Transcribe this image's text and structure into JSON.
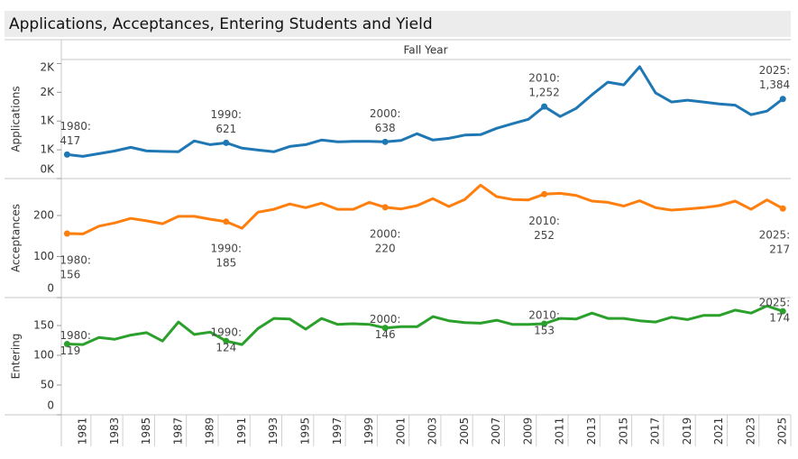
{
  "title": "Applications, Acceptances, Entering Students and Yield",
  "chart_data": [
    {
      "type": "line",
      "xlabel": "Fall Year",
      "ylabel": "Applications",
      "x": [
        1980,
        1981,
        1982,
        1983,
        1984,
        1985,
        1986,
        1987,
        1988,
        1989,
        1990,
        1991,
        1992,
        1993,
        1994,
        1995,
        1996,
        1997,
        1998,
        1999,
        2000,
        2001,
        2002,
        2003,
        2004,
        2005,
        2006,
        2007,
        2008,
        2009,
        2010,
        2011,
        2012,
        2013,
        2014,
        2015,
        2016,
        2017,
        2018,
        2019,
        2020,
        2021,
        2022,
        2023,
        2024,
        2025
      ],
      "xlim": [
        1980,
        2025
      ],
      "series": [
        {
          "name": "Applications",
          "color": "#1f77b4",
          "values": [
            417,
            385,
            433,
            480,
            543,
            480,
            472,
            465,
            654,
            590,
            621,
            528,
            496,
            465,
            559,
            590,
            670,
            638,
            646,
            646,
            638,
            661,
            780,
            669,
            700,
            756,
            764,
            874,
            953,
            1031,
            1252,
            1079,
            1220,
            1457,
            1677,
            1630,
            1945,
            1488,
            1331,
            1362,
            1331,
            1299,
            1276,
            1110,
            1173,
            1384
          ]
        }
      ],
      "ylim": [
        0,
        2070
      ],
      "yticks": [
        {
          "value": 0,
          "label": "0K"
        },
        {
          "value": 500,
          "label": "1K"
        },
        {
          "value": 1000,
          "label": "1K"
        },
        {
          "value": 1500,
          "label": "2K"
        },
        {
          "value": 2000,
          "label": "2K"
        }
      ],
      "annotations": [
        {
          "x": 1980,
          "label": "1980:",
          "value_label": "417"
        },
        {
          "x": 1990,
          "label": "1990:",
          "value_label": "621"
        },
        {
          "x": 2000,
          "label": "2000:",
          "value_label": "638"
        },
        {
          "x": 2010,
          "label": "2010:",
          "value_label": "1,252"
        },
        {
          "x": 2025,
          "label": "2025:",
          "value_label": "1,384"
        }
      ]
    },
    {
      "type": "line",
      "ylabel": "Acceptances",
      "x": [
        1980,
        1981,
        1982,
        1983,
        1984,
        1985,
        1986,
        1987,
        1988,
        1989,
        1990,
        1991,
        1992,
        1993,
        1994,
        1995,
        1996,
        1997,
        1998,
        1999,
        2000,
        2001,
        2002,
        2003,
        2004,
        2005,
        2006,
        2007,
        2008,
        2009,
        2010,
        2011,
        2012,
        2013,
        2014,
        2015,
        2016,
        2017,
        2018,
        2019,
        2020,
        2021,
        2022,
        2023,
        2024,
        2025
      ],
      "xlim": [
        1980,
        2025
      ],
      "series": [
        {
          "name": "Acceptances",
          "color": "#ff7f0e",
          "values": [
            156,
            155,
            174,
            182,
            193,
            187,
            180,
            198,
            198,
            191,
            185,
            169,
            208,
            215,
            228,
            219,
            230,
            215,
            215,
            232,
            220,
            216,
            224,
            241,
            222,
            239,
            274,
            246,
            239,
            238,
            252,
            254,
            249,
            235,
            232,
            223,
            236,
            219,
            213,
            216,
            219,
            224,
            235,
            215,
            238,
            217
          ]
        }
      ],
      "ylim": [
        0,
        290
      ],
      "yticks": [
        0,
        100,
        200
      ],
      "annotations": [
        {
          "x": 1980,
          "label": "1980:",
          "value_label": "156"
        },
        {
          "x": 1990,
          "label": "1990:",
          "value_label": "185"
        },
        {
          "x": 2000,
          "label": "2000:",
          "value_label": "220"
        },
        {
          "x": 2010,
          "label": "2010:",
          "value_label": "252"
        },
        {
          "x": 2025,
          "label": "2025:",
          "value_label": "217"
        }
      ]
    },
    {
      "type": "line",
      "ylabel": "Entering",
      "x": [
        1980,
        1981,
        1982,
        1983,
        1984,
        1985,
        1986,
        1987,
        1988,
        1989,
        1990,
        1991,
        1992,
        1993,
        1994,
        1995,
        1996,
        1997,
        1998,
        1999,
        2000,
        2001,
        2002,
        2003,
        2004,
        2005,
        2006,
        2007,
        2008,
        2009,
        2010,
        2011,
        2012,
        2013,
        2014,
        2015,
        2016,
        2017,
        2018,
        2019,
        2020,
        2021,
        2022,
        2023,
        2024,
        2025
      ],
      "xlim": [
        1980,
        2025
      ],
      "xticks": [
        1981,
        1983,
        1985,
        1987,
        1989,
        1991,
        1993,
        1995,
        1997,
        1999,
        2001,
        2003,
        2005,
        2007,
        2009,
        2011,
        2013,
        2015,
        2017,
        2019,
        2021,
        2023,
        2025
      ],
      "series": [
        {
          "name": "Entering",
          "color": "#2ca02c",
          "values": [
            119,
            118,
            130,
            127,
            134,
            138,
            124,
            156,
            135,
            139,
            124,
            118,
            145,
            162,
            161,
            144,
            162,
            152,
            153,
            152,
            146,
            148,
            148,
            165,
            158,
            155,
            154,
            159,
            152,
            152,
            153,
            162,
            161,
            171,
            162,
            162,
            158,
            156,
            164,
            160,
            167,
            167,
            176,
            171,
            183,
            174
          ]
        }
      ],
      "ylim": [
        0,
        197
      ],
      "yticks": [
        0,
        50,
        100,
        150
      ],
      "annotations": [
        {
          "x": 1980,
          "label": "1980:",
          "value_label": "119"
        },
        {
          "x": 1990,
          "label": "1990:",
          "value_label": "124"
        },
        {
          "x": 2000,
          "label": "2000:",
          "value_label": "146"
        },
        {
          "x": 2010,
          "label": "2010:",
          "value_label": "153"
        },
        {
          "x": 2025,
          "label": "2025:",
          "value_label": "174"
        }
      ]
    }
  ]
}
